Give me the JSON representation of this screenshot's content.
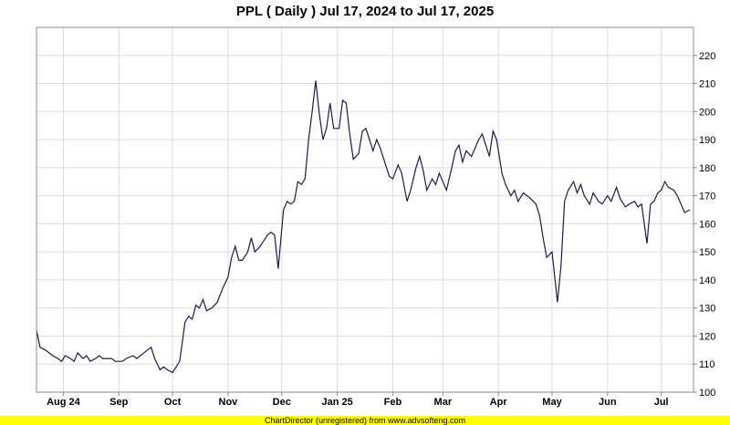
{
  "footer": "ChartDirector (unregistered) from www.advsofteng.com",
  "chart_data": {
    "type": "line",
    "title": "PPL ( Daily ) Jul 17, 2024 to Jul 17, 2025",
    "line_color": "#1a1a4e",
    "grid": true,
    "ylim": [
      100,
      230
    ],
    "y_ticks": [
      100,
      110,
      120,
      130,
      140,
      150,
      160,
      170,
      180,
      190,
      200,
      210,
      220
    ],
    "x_ticks": [
      {
        "label": "Aug 24",
        "x": "2024-08-01"
      },
      {
        "label": "Sep",
        "x": "2024-09-01"
      },
      {
        "label": "Oct",
        "x": "2024-10-01"
      },
      {
        "label": "Nov",
        "x": "2024-11-01"
      },
      {
        "label": "Dec",
        "x": "2024-12-01"
      },
      {
        "label": "Jan 25",
        "x": "2025-01-01"
      },
      {
        "label": "Feb",
        "x": "2025-02-01"
      },
      {
        "label": "Mar",
        "x": "2025-03-01"
      },
      {
        "label": "Apr",
        "x": "2025-04-01"
      },
      {
        "label": "May",
        "x": "2025-05-01"
      },
      {
        "label": "Jun",
        "x": "2025-06-01"
      },
      {
        "label": "Jul",
        "x": "2025-07-01"
      }
    ],
    "x_range": [
      "2024-07-17",
      "2025-07-19"
    ],
    "series": [
      {
        "points": [
          [
            "2024-07-17",
            122
          ],
          [
            "2024-07-19",
            116
          ],
          [
            "2024-07-22",
            115
          ],
          [
            "2024-07-24",
            114
          ],
          [
            "2024-07-26",
            113
          ],
          [
            "2024-07-29",
            112
          ],
          [
            "2024-07-31",
            111
          ],
          [
            "2024-08-02",
            113
          ],
          [
            "2024-08-05",
            112
          ],
          [
            "2024-08-07",
            111
          ],
          [
            "2024-08-09",
            114
          ],
          [
            "2024-08-12",
            112
          ],
          [
            "2024-08-14",
            113
          ],
          [
            "2024-08-16",
            111
          ],
          [
            "2024-08-19",
            112
          ],
          [
            "2024-08-21",
            113
          ],
          [
            "2024-08-23",
            112
          ],
          [
            "2024-08-26",
            112
          ],
          [
            "2024-08-28",
            112
          ],
          [
            "2024-08-30",
            111
          ],
          [
            "2024-09-03",
            111
          ],
          [
            "2024-09-05",
            112
          ],
          [
            "2024-09-09",
            113
          ],
          [
            "2024-09-11",
            112
          ],
          [
            "2024-09-13",
            113
          ],
          [
            "2024-09-17",
            115
          ],
          [
            "2024-09-19",
            116
          ],
          [
            "2024-09-21",
            112
          ],
          [
            "2024-09-24",
            108
          ],
          [
            "2024-09-26",
            109
          ],
          [
            "2024-09-28",
            108
          ],
          [
            "2024-10-01",
            107
          ],
          [
            "2024-10-03",
            109
          ],
          [
            "2024-10-05",
            111
          ],
          [
            "2024-10-08",
            125
          ],
          [
            "2024-10-10",
            127
          ],
          [
            "2024-10-12",
            126
          ],
          [
            "2024-10-14",
            131
          ],
          [
            "2024-10-16",
            130
          ],
          [
            "2024-10-18",
            133
          ],
          [
            "2024-10-20",
            129
          ],
          [
            "2024-10-23",
            130
          ],
          [
            "2024-10-26",
            132
          ],
          [
            "2024-10-29",
            137
          ],
          [
            "2024-11-01",
            141
          ],
          [
            "2024-11-03",
            148
          ],
          [
            "2024-11-05",
            152
          ],
          [
            "2024-11-07",
            147
          ],
          [
            "2024-11-09",
            147
          ],
          [
            "2024-11-12",
            150
          ],
          [
            "2024-11-14",
            155
          ],
          [
            "2024-11-16",
            150
          ],
          [
            "2024-11-19",
            152
          ],
          [
            "2024-11-21",
            154
          ],
          [
            "2024-11-23",
            156
          ],
          [
            "2024-11-25",
            157
          ],
          [
            "2024-11-27",
            156
          ],
          [
            "2024-11-29",
            144
          ],
          [
            "2024-12-02",
            165
          ],
          [
            "2024-12-04",
            168
          ],
          [
            "2024-12-06",
            167
          ],
          [
            "2024-12-08",
            168
          ],
          [
            "2024-12-10",
            175
          ],
          [
            "2024-12-12",
            174
          ],
          [
            "2024-12-14",
            176
          ],
          [
            "2024-12-16",
            190
          ],
          [
            "2024-12-18",
            200
          ],
          [
            "2024-12-20",
            211
          ],
          [
            "2024-12-22",
            199
          ],
          [
            "2024-12-24",
            190
          ],
          [
            "2024-12-26",
            194
          ],
          [
            "2024-12-28",
            203
          ],
          [
            "2024-12-30",
            194
          ],
          [
            "2025-01-02",
            194
          ],
          [
            "2025-01-04",
            204
          ],
          [
            "2025-01-06",
            203
          ],
          [
            "2025-01-08",
            192
          ],
          [
            "2025-01-10",
            183
          ],
          [
            "2025-01-13",
            185
          ],
          [
            "2025-01-15",
            193
          ],
          [
            "2025-01-17",
            194
          ],
          [
            "2025-01-19",
            190
          ],
          [
            "2025-01-21",
            186
          ],
          [
            "2025-01-23",
            190
          ],
          [
            "2025-01-25",
            187
          ],
          [
            "2025-01-28",
            181
          ],
          [
            "2025-01-30",
            177
          ],
          [
            "2025-02-01",
            176
          ],
          [
            "2025-02-04",
            181
          ],
          [
            "2025-02-06",
            178
          ],
          [
            "2025-02-09",
            168
          ],
          [
            "2025-02-11",
            172
          ],
          [
            "2025-02-14",
            180
          ],
          [
            "2025-02-16",
            184
          ],
          [
            "2025-02-18",
            179
          ],
          [
            "2025-02-20",
            172
          ],
          [
            "2025-02-23",
            176
          ],
          [
            "2025-02-25",
            174
          ],
          [
            "2025-02-27",
            178
          ],
          [
            "2025-03-01",
            175
          ],
          [
            "2025-03-03",
            172
          ],
          [
            "2025-03-06",
            180
          ],
          [
            "2025-03-08",
            186
          ],
          [
            "2025-03-10",
            188
          ],
          [
            "2025-03-12",
            182
          ],
          [
            "2025-03-14",
            186
          ],
          [
            "2025-03-17",
            184
          ],
          [
            "2025-03-19",
            187
          ],
          [
            "2025-03-21",
            190
          ],
          [
            "2025-03-23",
            192
          ],
          [
            "2025-03-25",
            188
          ],
          [
            "2025-03-27",
            184
          ],
          [
            "2025-03-29",
            193
          ],
          [
            "2025-03-31",
            190
          ],
          [
            "2025-04-03",
            178
          ],
          [
            "2025-04-05",
            174
          ],
          [
            "2025-04-08",
            170
          ],
          [
            "2025-04-10",
            172
          ],
          [
            "2025-04-12",
            168
          ],
          [
            "2025-04-15",
            171
          ],
          [
            "2025-04-17",
            170
          ],
          [
            "2025-04-19",
            169
          ],
          [
            "2025-04-22",
            167
          ],
          [
            "2025-04-24",
            163
          ],
          [
            "2025-04-26",
            155
          ],
          [
            "2025-04-28",
            148
          ],
          [
            "2025-05-01",
            150
          ],
          [
            "2025-05-04",
            132
          ],
          [
            "2025-05-06",
            145
          ],
          [
            "2025-05-08",
            168
          ],
          [
            "2025-05-10",
            172
          ],
          [
            "2025-05-13",
            175
          ],
          [
            "2025-05-15",
            171
          ],
          [
            "2025-05-17",
            174
          ],
          [
            "2025-05-19",
            170
          ],
          [
            "2025-05-22",
            167
          ],
          [
            "2025-05-24",
            171
          ],
          [
            "2025-05-27",
            168
          ],
          [
            "2025-05-29",
            167
          ],
          [
            "2025-06-01",
            170
          ],
          [
            "2025-06-03",
            168
          ],
          [
            "2025-06-06",
            173
          ],
          [
            "2025-06-08",
            169
          ],
          [
            "2025-06-11",
            166
          ],
          [
            "2025-06-13",
            167
          ],
          [
            "2025-06-16",
            168
          ],
          [
            "2025-06-18",
            166
          ],
          [
            "2025-06-20",
            167
          ],
          [
            "2025-06-23",
            153
          ],
          [
            "2025-06-25",
            167
          ],
          [
            "2025-06-27",
            168
          ],
          [
            "2025-06-29",
            171
          ],
          [
            "2025-07-01",
            172
          ],
          [
            "2025-07-03",
            175
          ],
          [
            "2025-07-05",
            173
          ],
          [
            "2025-07-08",
            172
          ],
          [
            "2025-07-10",
            170
          ],
          [
            "2025-07-12",
            167
          ],
          [
            "2025-07-14",
            164
          ],
          [
            "2025-07-17",
            165
          ]
        ]
      }
    ]
  }
}
